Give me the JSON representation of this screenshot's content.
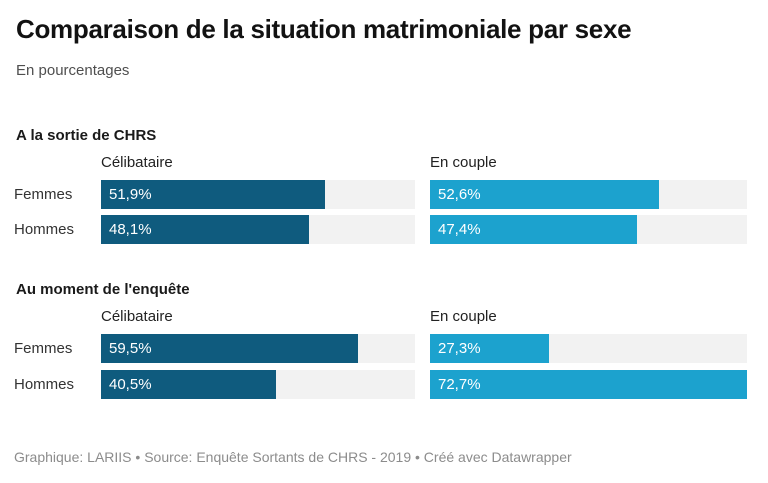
{
  "title": "Comparaison de la situation matrimoniale par sexe",
  "subtitle": "En pourcentages",
  "footer": "Graphique: LARIIS • Source: Enquête Sortants de CHRS - 2019 • Créé avec Datawrapper",
  "colors": {
    "celibataire_bar": "#0f5b7e",
    "en_couple_bar": "#1ca2ce",
    "track": "#f2f2f2",
    "title_text": "#121212",
    "footer_text": "#8c8c8c"
  },
  "chart_data": {
    "type": "bar",
    "orientation": "horizontal",
    "xmax": 72.7,
    "grid": false,
    "legend_position": "column-headers",
    "columns": [
      "Célibataire",
      "En couple"
    ],
    "rows": [
      "Femmes",
      "Hommes"
    ],
    "groups": [
      {
        "title": "A la sortie de CHRS",
        "columns": [
          "Célibataire",
          "En couple"
        ],
        "rows": [
          "Femmes",
          "Hommes"
        ],
        "values": [
          [
            51.9,
            52.6
          ],
          [
            48.1,
            47.4
          ]
        ],
        "labels": [
          [
            "51,9%",
            "52,6%"
          ],
          [
            "48,1%",
            "47,4%"
          ]
        ]
      },
      {
        "title": "Au moment de l'enquête",
        "columns": [
          "Célibataire",
          "En couple"
        ],
        "rows": [
          "Femmes",
          "Hommes"
        ],
        "values": [
          [
            59.5,
            27.3
          ],
          [
            40.5,
            72.7
          ]
        ],
        "labels": [
          [
            "59,5%",
            "27,3%"
          ],
          [
            "40,5%",
            "72,7%"
          ]
        ]
      }
    ]
  }
}
